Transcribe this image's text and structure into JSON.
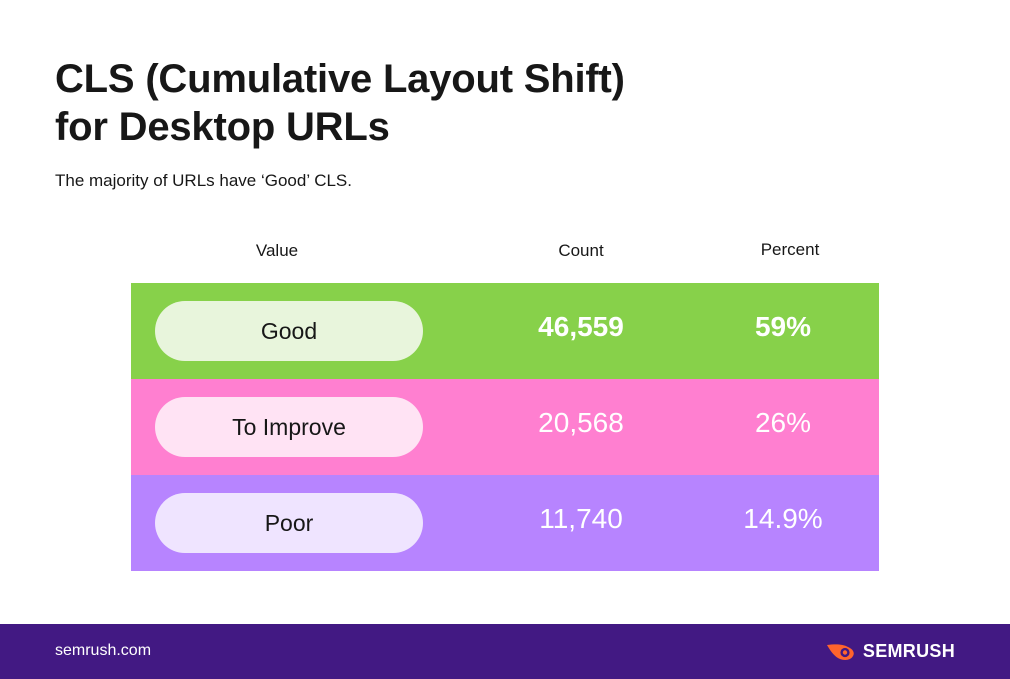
{
  "title_line1": "CLS (Cumulative Layout Shift)",
  "title_line2": "for Desktop URLs",
  "subtitle": "The majority of URLs have ‘Good’ CLS.",
  "footer": {
    "domain": "semrush.com",
    "brand": "SEMRUSH",
    "brand_icon": "semrush-fireball-icon",
    "brand_icon_color": "#ff642d",
    "background": "#421983"
  },
  "chart_data": {
    "type": "table",
    "columns": [
      "Value",
      "Count",
      "Percent"
    ],
    "rows": [
      {
        "value": "Good",
        "count": "46,559",
        "percent": "59%",
        "color": "#87d14a",
        "pill_color": "#e8f5dc"
      },
      {
        "value": "To Improve",
        "count": "20,568",
        "percent": "26%",
        "color": "#ff7fd0",
        "pill_color": "#ffe3f4"
      },
      {
        "value": "Poor",
        "count": "11,740",
        "percent": "14.9%",
        "color": "#b784ff",
        "pill_color": "#efe4ff"
      }
    ]
  }
}
